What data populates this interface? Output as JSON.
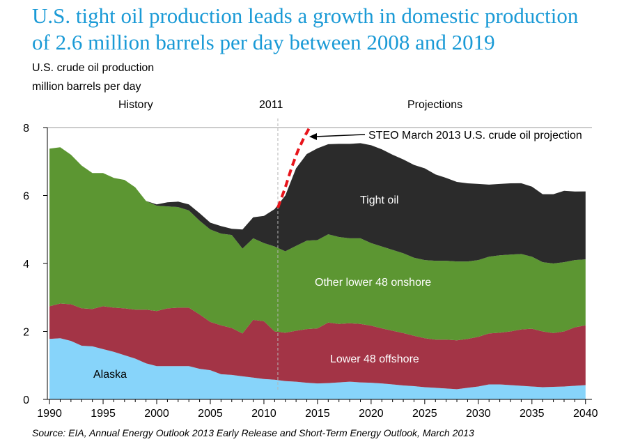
{
  "title": {
    "line1": "U.S. tight oil production leads a growth in domestic production",
    "line2": "of 2.6 million barrels per day between 2008 and 2019"
  },
  "y_label_1": "U.S. crude oil production",
  "y_label_2": "million barrels per day",
  "period_history": "History",
  "period_divider": "2011",
  "period_projections": "Projections",
  "source": "Source:  EIA, Annual Energy Outlook 2013 Early Release and Short-Term Energy Outlook, March 2013",
  "colors": {
    "alaska": "#87d4fa",
    "lower48_offshore": "#a33446",
    "other_lower48_onshore": "#5c9632",
    "tight_oil": "#2b2b2b",
    "steo": "#e8141b",
    "title": "#1a9ad6"
  },
  "chart_data": {
    "type": "area",
    "stacked": true,
    "x": [
      1990,
      1991,
      1992,
      1993,
      1994,
      1995,
      1996,
      1997,
      1998,
      1999,
      2000,
      2001,
      2002,
      2003,
      2004,
      2005,
      2006,
      2007,
      2008,
      2009,
      2010,
      2011,
      2012,
      2013,
      2014,
      2015,
      2016,
      2017,
      2018,
      2019,
      2020,
      2021,
      2022,
      2023,
      2024,
      2025,
      2026,
      2027,
      2028,
      2029,
      2030,
      2031,
      2032,
      2033,
      2034,
      2035,
      2036,
      2037,
      2038,
      2039,
      2040
    ],
    "series": [
      {
        "name": "Alaska",
        "values": [
          1.78,
          1.8,
          1.72,
          1.58,
          1.56,
          1.48,
          1.4,
          1.3,
          1.2,
          1.06,
          0.98,
          0.98,
          0.98,
          0.98,
          0.9,
          0.86,
          0.74,
          0.72,
          0.68,
          0.64,
          0.6,
          0.58,
          0.54,
          0.52,
          0.49,
          0.47,
          0.48,
          0.5,
          0.52,
          0.5,
          0.49,
          0.47,
          0.44,
          0.41,
          0.39,
          0.36,
          0.34,
          0.32,
          0.3,
          0.34,
          0.38,
          0.44,
          0.44,
          0.42,
          0.4,
          0.38,
          0.36,
          0.37,
          0.38,
          0.4,
          0.42
        ]
      },
      {
        "name": "Lower 48 offshore",
        "values": [
          0.96,
          1.02,
          1.08,
          1.1,
          1.1,
          1.26,
          1.3,
          1.38,
          1.44,
          1.58,
          1.62,
          1.7,
          1.72,
          1.72,
          1.6,
          1.42,
          1.44,
          1.38,
          1.26,
          1.7,
          1.7,
          1.42,
          1.42,
          1.5,
          1.58,
          1.62,
          1.78,
          1.72,
          1.72,
          1.72,
          1.68,
          1.62,
          1.58,
          1.54,
          1.48,
          1.44,
          1.42,
          1.44,
          1.44,
          1.44,
          1.46,
          1.5,
          1.52,
          1.58,
          1.66,
          1.7,
          1.64,
          1.58,
          1.62,
          1.72,
          1.76
        ]
      },
      {
        "name": "Other lower 48 onshore",
        "values": [
          4.64,
          4.6,
          4.4,
          4.2,
          4.0,
          3.92,
          3.82,
          3.78,
          3.6,
          3.2,
          3.1,
          3.0,
          2.96,
          2.86,
          2.76,
          2.72,
          2.7,
          2.74,
          2.5,
          2.4,
          2.3,
          2.5,
          2.4,
          2.5,
          2.6,
          2.6,
          2.6,
          2.56,
          2.5,
          2.52,
          2.43,
          2.41,
          2.38,
          2.35,
          2.3,
          2.3,
          2.32,
          2.32,
          2.32,
          2.28,
          2.26,
          2.26,
          2.28,
          2.26,
          2.22,
          2.12,
          2.04,
          2.05,
          2.04,
          1.98,
          1.94
        ]
      },
      {
        "name": "Tight oil",
        "values": [
          0,
          0,
          0,
          0,
          0,
          0,
          0,
          0,
          0,
          0,
          0.04,
          0.12,
          0.16,
          0.18,
          0.22,
          0.2,
          0.22,
          0.18,
          0.56,
          0.62,
          0.8,
          1.1,
          1.64,
          2.28,
          2.55,
          2.7,
          2.65,
          2.74,
          2.78,
          2.8,
          2.88,
          2.86,
          2.8,
          2.76,
          2.73,
          2.7,
          2.54,
          2.44,
          2.34,
          2.3,
          2.24,
          2.12,
          2.1,
          2.1,
          2.08,
          2.06,
          2.0,
          2.04,
          2.1,
          2.02,
          2.0
        ]
      }
    ],
    "steo_projection": {
      "name": "STEO March 2013 U.S. crude oil projection",
      "x": [
        2011.3,
        2012,
        2012.6,
        2013.2,
        2013.8,
        2014.3
      ],
      "values": [
        5.64,
        6.24,
        6.84,
        7.34,
        7.74,
        8.02
      ]
    },
    "area_labels": [
      "Alaska",
      "Lower 48 offshore",
      "Other lower 48 onshore",
      "Tight oil"
    ],
    "xlim": [
      1989.8,
      2040.6
    ],
    "ylim": [
      0,
      8
    ],
    "x_ticks": [
      1990,
      1995,
      2000,
      2005,
      2010,
      2015,
      2020,
      2025,
      2030,
      2035,
      2040
    ],
    "y_ticks": [
      0,
      2,
      4,
      6,
      8
    ],
    "marker_year": 2011.3,
    "grid": false
  }
}
